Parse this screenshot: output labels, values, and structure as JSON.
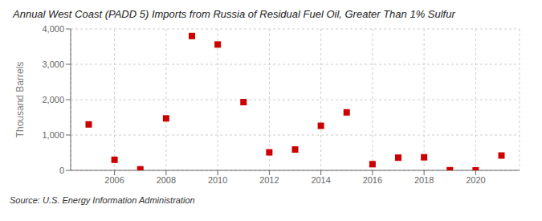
{
  "chart_data": {
    "type": "scatter",
    "title": "Annual West Coast (PADD 5) Imports from Russia of Residual Fuel Oil, Greater Than 1% Sulfur",
    "ylabel": "Thousand Barrels",
    "annotations": [
      "Source: U.S. Energy Information Administration"
    ],
    "x": [
      2005,
      2006,
      2007,
      2008,
      2009,
      2010,
      2011,
      2012,
      2013,
      2014,
      2015,
      2016,
      2017,
      2018,
      2019,
      2020,
      2021
    ],
    "values": [
      1300,
      300,
      30,
      1470,
      3800,
      3560,
      1930,
      510,
      590,
      1260,
      1640,
      175,
      360,
      370,
      5,
      0,
      420
    ],
    "color": "#cc0000",
    "marker": "square",
    "xlim": [
      2004.3,
      2021.7
    ],
    "xticks": [
      2006,
      2008,
      2010,
      2012,
      2014,
      2016,
      2018,
      2020
    ],
    "ylim": [
      0,
      4000
    ],
    "yticks": [
      0,
      {
        "value": 1000,
        "label": "1,000"
      },
      {
        "value": 2000,
        "label": "2,000"
      },
      {
        "value": 3000,
        "label": "3,000"
      },
      {
        "value": 4000,
        "label": "4,000"
      }
    ],
    "grid": true
  }
}
